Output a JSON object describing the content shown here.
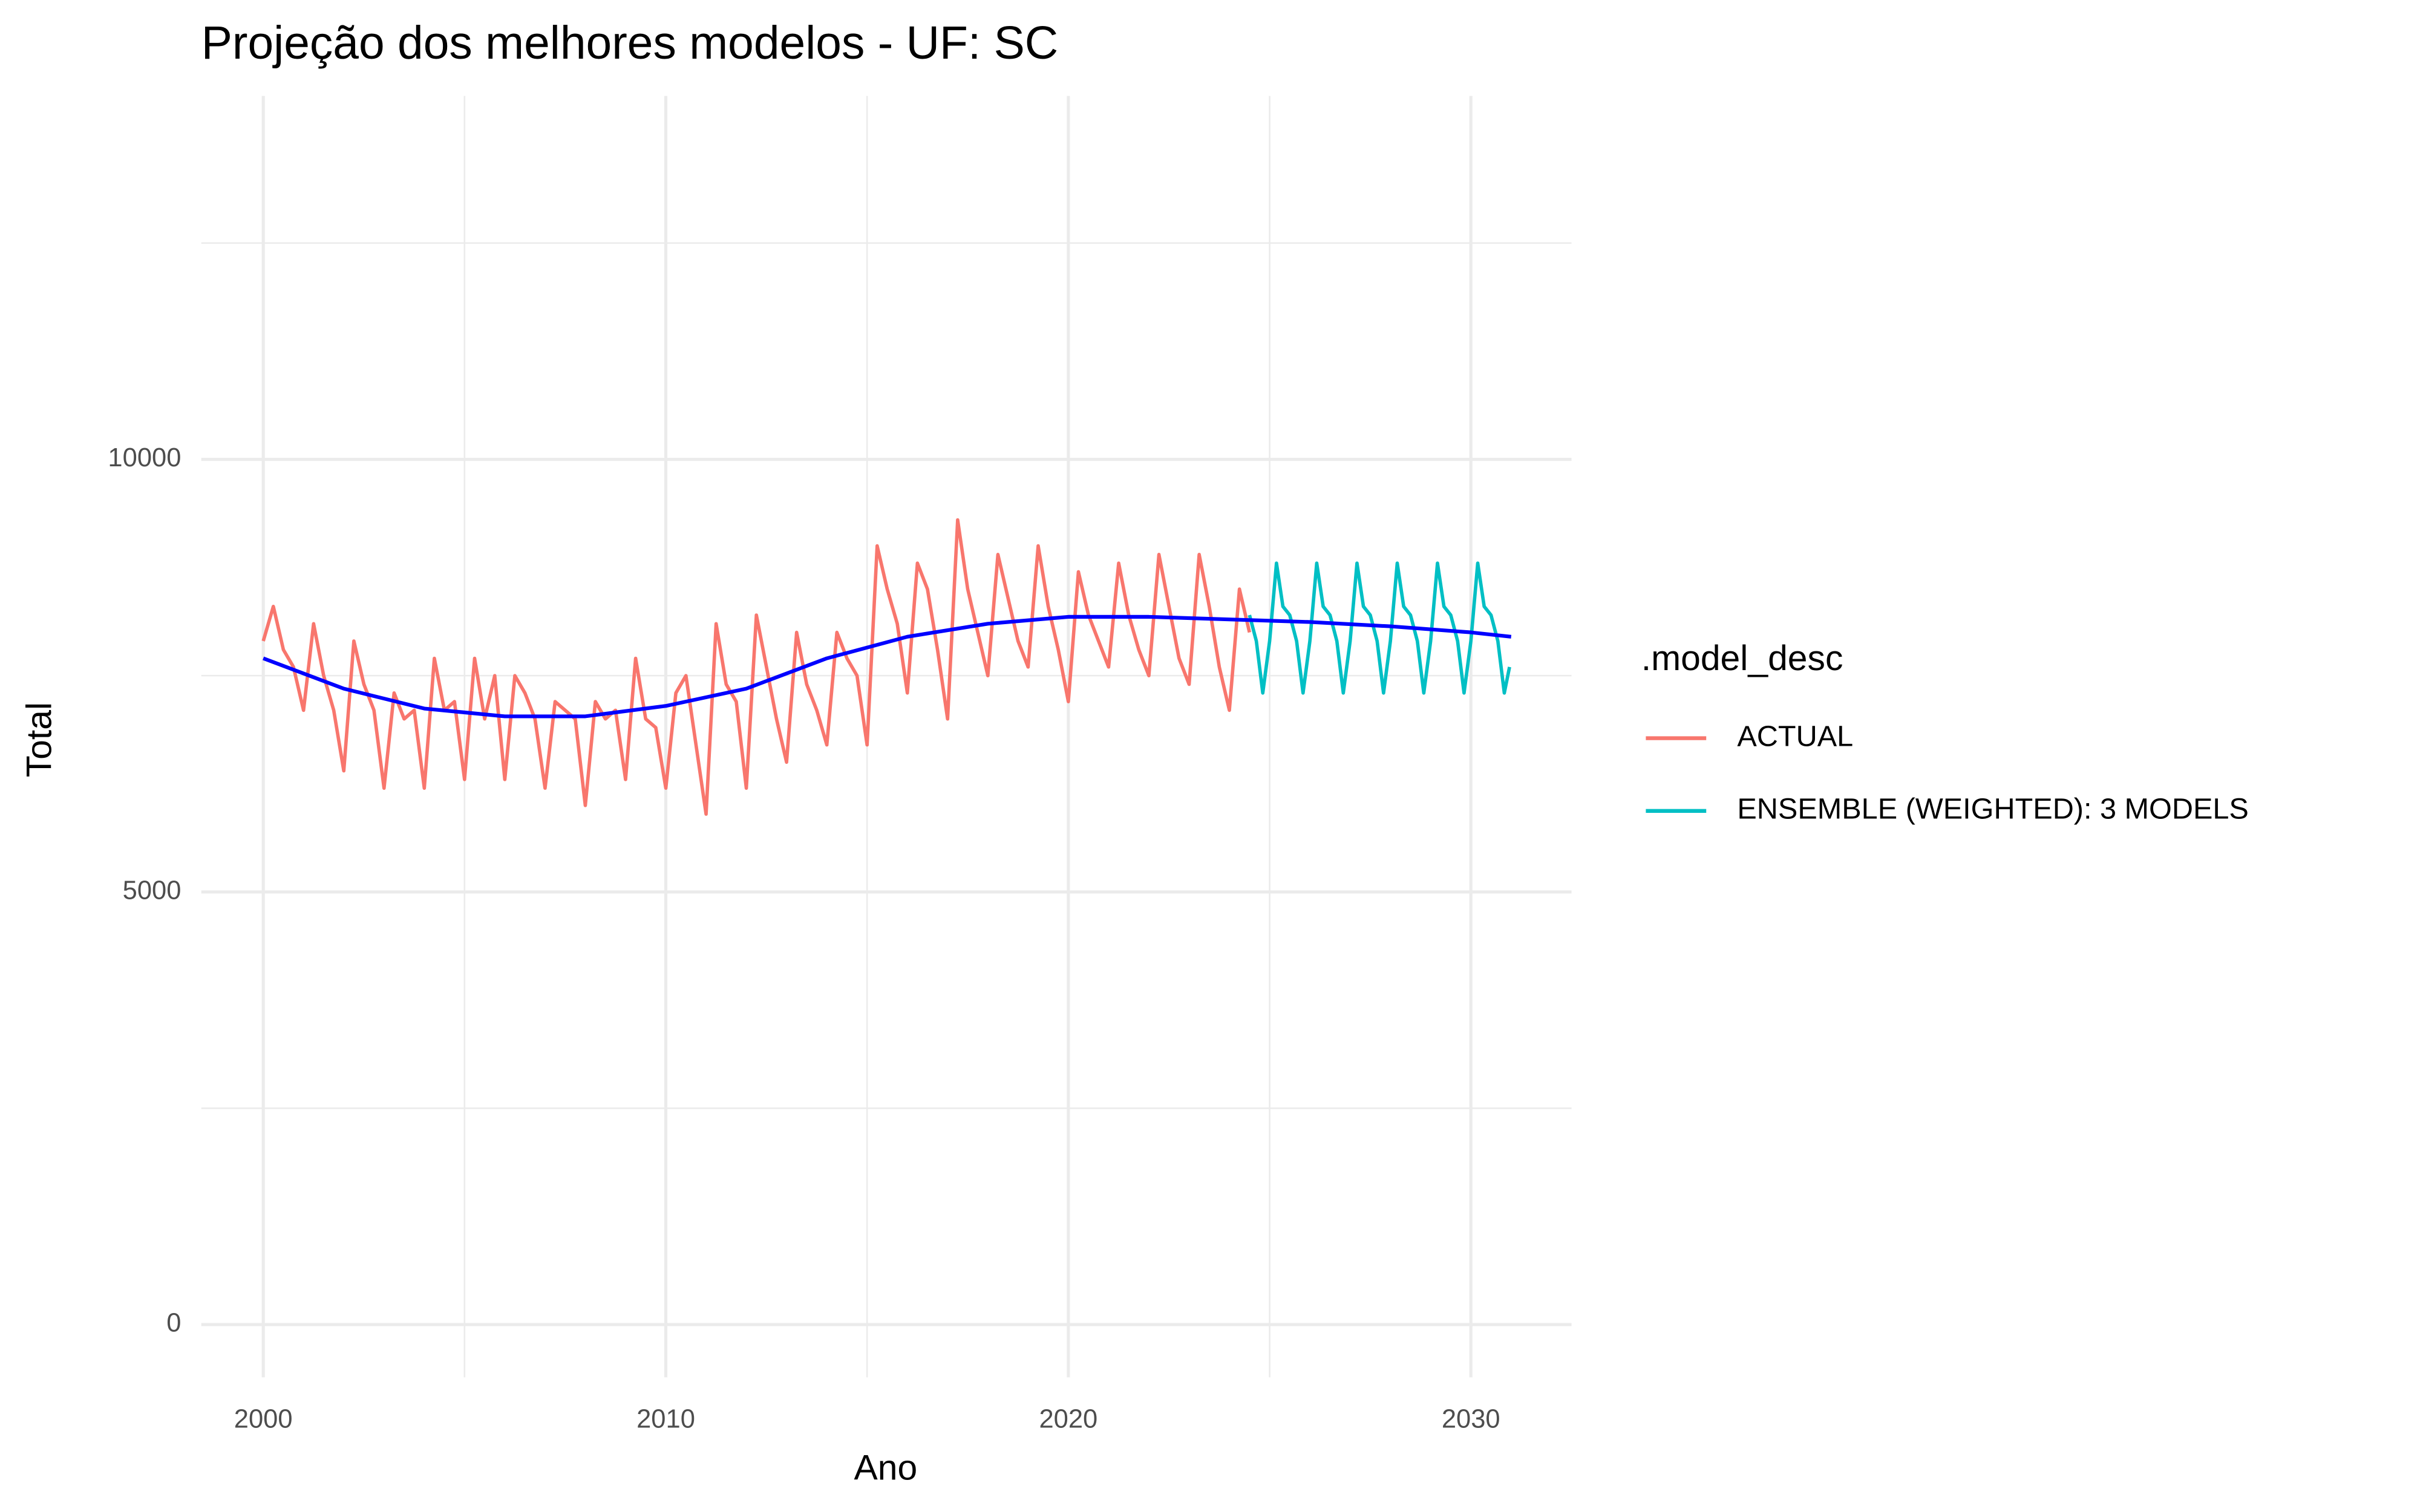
{
  "chart_data": {
    "type": "line",
    "title": "Projeção dos melhores modelos - UF: SC",
    "x_label": "Ano",
    "y_label": "Total",
    "legend_title": ".model_desc",
    "legend_position": "right",
    "grid": true,
    "xlim": [
      1998.46,
      2032.5
    ],
    "ylim": [
      -610,
      14200
    ],
    "xticks": [
      2000,
      2010,
      2020,
      2030
    ],
    "yticks": [
      0,
      5000,
      10000
    ],
    "x_minor_grid": [
      2005,
      2015,
      2025
    ],
    "y_minor_grid": [
      2500,
      7500,
      12500
    ],
    "series": [
      {
        "name": "ACTUAL",
        "color": "#F8766D",
        "x": [
          2000,
          2000.25,
          2000.5,
          2000.75,
          2001,
          2001.25,
          2001.5,
          2001.75,
          2002,
          2002.25,
          2002.5,
          2002.75,
          2003,
          2003.25,
          2003.5,
          2003.75,
          2004,
          2004.25,
          2004.5,
          2004.75,
          2005,
          2005.25,
          2005.5,
          2005.75,
          2006,
          2006.25,
          2006.5,
          2006.75,
          2007,
          2007.25,
          2007.5,
          2007.75,
          2008,
          2008.25,
          2008.5,
          2008.75,
          2009,
          2009.25,
          2009.5,
          2009.75,
          2010,
          2010.25,
          2010.5,
          2010.75,
          2011,
          2011.25,
          2011.5,
          2011.75,
          2012,
          2012.25,
          2012.5,
          2012.75,
          2013,
          2013.25,
          2013.5,
          2013.75,
          2014,
          2014.25,
          2014.5,
          2014.75,
          2015,
          2015.25,
          2015.5,
          2015.75,
          2016,
          2016.25,
          2016.5,
          2016.75,
          2017,
          2017.25,
          2017.5,
          2017.75,
          2018,
          2018.25,
          2018.5,
          2018.75,
          2019,
          2019.25,
          2019.5,
          2019.75,
          2020,
          2020.25,
          2020.5,
          2020.75,
          2021,
          2021.25,
          2021.5,
          2021.75,
          2022,
          2022.25,
          2022.5,
          2022.75,
          2023,
          2023.25,
          2023.5,
          2023.75,
          2024,
          2024.25,
          2024.5
        ],
        "values": [
          7900,
          8300,
          7800,
          7600,
          7100,
          8100,
          7500,
          7100,
          6400,
          7900,
          7400,
          7100,
          6200,
          7300,
          7000,
          7100,
          6200,
          7700,
          7100,
          7200,
          6300,
          7700,
          7000,
          7500,
          6300,
          7500,
          7300,
          7000,
          6200,
          7200,
          7100,
          7000,
          6000,
          7200,
          7000,
          7100,
          6300,
          7700,
          7000,
          6900,
          6200,
          7300,
          7500,
          6700,
          5900,
          8100,
          7400,
          7200,
          6200,
          8200,
          7600,
          7000,
          6500,
          8000,
          7400,
          7100,
          6700,
          8000,
          7700,
          7500,
          6700,
          9000,
          8500,
          8100,
          7300,
          8800,
          8500,
          7800,
          7000,
          9300,
          8500,
          8000,
          7500,
          8900,
          8400,
          7900,
          7600,
          9000,
          8300,
          7800,
          7200,
          8700,
          8200,
          7900,
          7600,
          8800,
          8200,
          7800,
          7500,
          8900,
          8300,
          7700,
          7400,
          8900,
          8300,
          7600,
          7100,
          8500,
          8000
        ]
      },
      {
        "name": "ENSEMBLE (WEIGHTED): 3 MODELS",
        "color": "#00BFC4",
        "x": [
          2024.5,
          2024.67,
          2024.83,
          2025,
          2025.17,
          2025.33,
          2025.5,
          2025.67,
          2025.83,
          2026,
          2026.17,
          2026.33,
          2026.5,
          2026.67,
          2026.83,
          2027,
          2027.17,
          2027.33,
          2027.5,
          2027.67,
          2027.83,
          2028,
          2028.17,
          2028.33,
          2028.5,
          2028.67,
          2028.83,
          2029,
          2029.17,
          2029.33,
          2029.5,
          2029.67,
          2029.83,
          2030,
          2030.17,
          2030.33,
          2030.5,
          2030.67,
          2030.83,
          2030.96
        ],
        "values": [
          8200,
          7900,
          7300,
          7900,
          8800,
          8300,
          8200,
          7900,
          7300,
          7900,
          8800,
          8300,
          8200,
          7900,
          7300,
          7900,
          8800,
          8300,
          8200,
          7900,
          7300,
          7900,
          8800,
          8300,
          8200,
          7900,
          7300,
          7900,
          8800,
          8300,
          8200,
          7900,
          7300,
          7900,
          8800,
          8300,
          8200,
          7900,
          7300,
          7600
        ]
      }
    ],
    "trend": {
      "color": "#0000FF",
      "x": [
        2000,
        2002,
        2004,
        2006,
        2008,
        2010,
        2012,
        2014,
        2016,
        2018,
        2020,
        2022,
        2024,
        2026,
        2028,
        2030,
        2031
      ],
      "values": [
        7700,
        7350,
        7120,
        7030,
        7030,
        7150,
        7350,
        7700,
        7950,
        8100,
        8180,
        8180,
        8150,
        8120,
        8070,
        8000,
        7950
      ]
    }
  }
}
